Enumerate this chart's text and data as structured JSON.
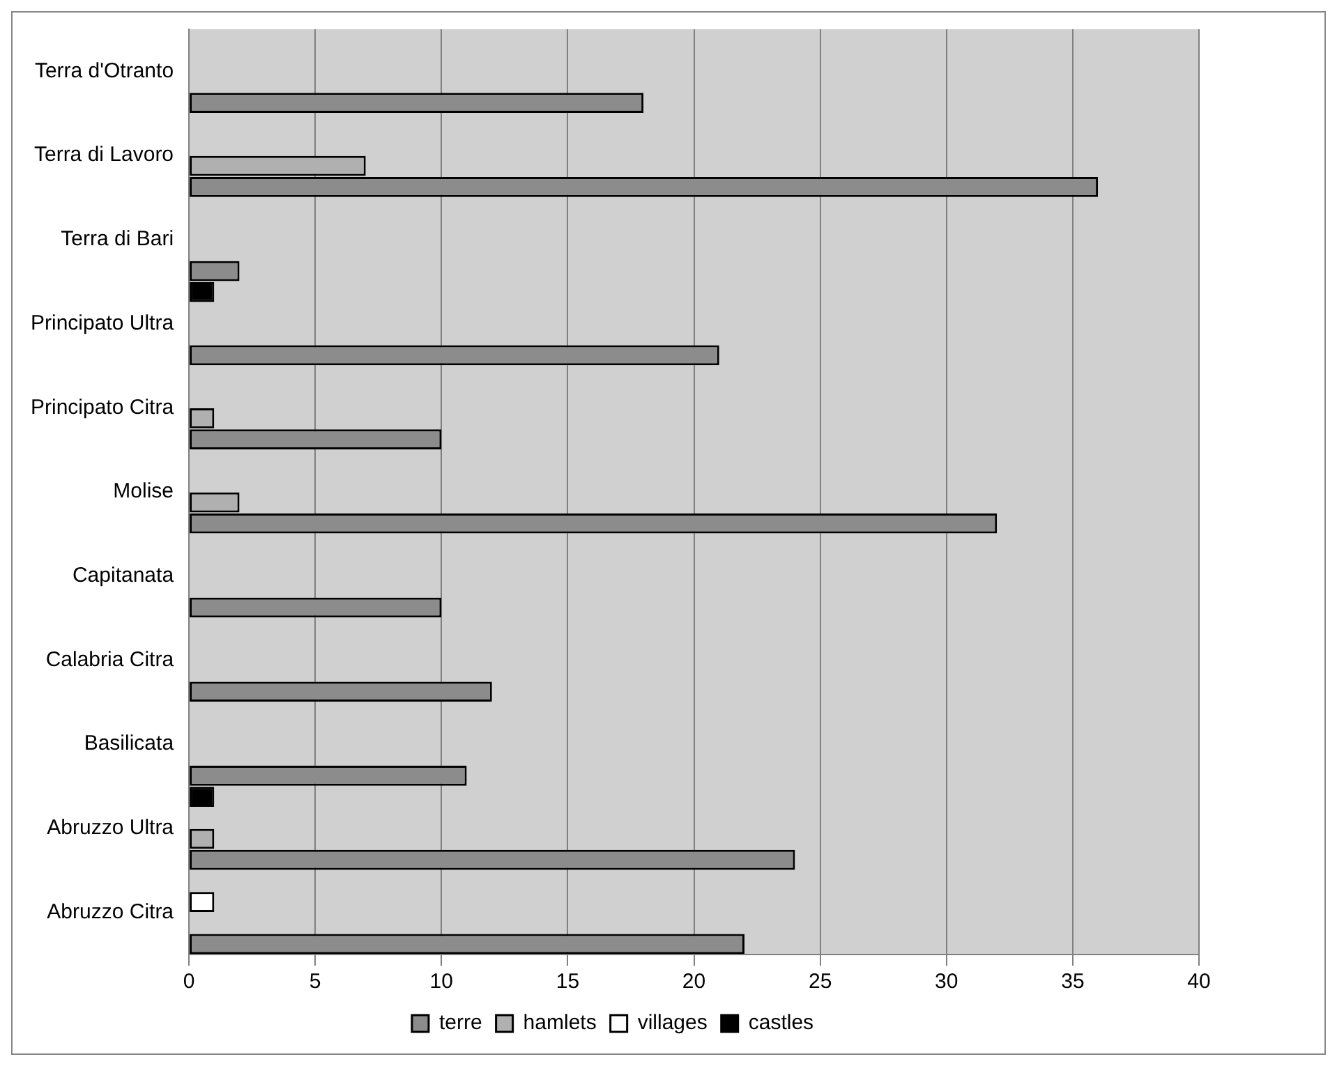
{
  "chart_data": {
    "type": "bar",
    "orientation": "horizontal",
    "categories": [
      "Terra d'Otranto",
      "Terra di Lavoro",
      "Terra di Bari",
      "Principato Ultra",
      "Principato Citra",
      "Molise",
      "Capitanata",
      "Calabria Citra",
      "Basilicata",
      "Abruzzo Ultra",
      "Abruzzo Citra"
    ],
    "series": [
      {
        "name": "terre",
        "color": "#8c8c8c",
        "values": [
          18,
          36,
          2,
          21,
          10,
          32,
          10,
          12,
          11,
          24,
          22
        ]
      },
      {
        "name": "hamlets",
        "color": "#b0b0b0",
        "values": [
          null,
          7,
          null,
          null,
          1,
          2,
          null,
          null,
          null,
          1,
          null
        ]
      },
      {
        "name": "villages",
        "color": "#ffffff",
        "values": [
          null,
          null,
          null,
          null,
          null,
          null,
          null,
          null,
          null,
          null,
          1
        ]
      },
      {
        "name": "castles",
        "color": "#000000",
        "values": [
          null,
          null,
          null,
          1,
          null,
          null,
          null,
          null,
          null,
          1,
          null
        ]
      }
    ],
    "xlim": [
      0,
      40
    ],
    "xticks": [
      0,
      5,
      10,
      15,
      20,
      25,
      30,
      35,
      40
    ],
    "grid": "x",
    "legend": "bottom"
  }
}
